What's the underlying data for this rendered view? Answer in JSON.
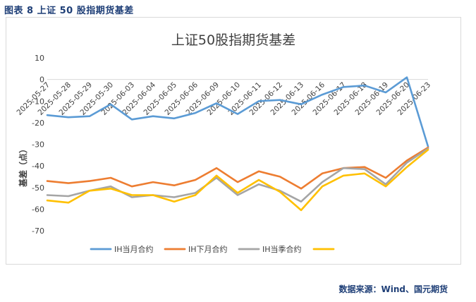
{
  "caption": "图表 8  上证 50 股指期货基差",
  "source": "数据来源：Wind、国元期货",
  "chart_data": {
    "type": "line",
    "title": "上证50股指期货基差",
    "ylabel": "基差（点）",
    "xlabel": "",
    "ylim": [
      -70,
      10
    ],
    "yticks": [
      10,
      0,
      -10,
      -20,
      -30,
      -40,
      -50,
      -60,
      -70
    ],
    "grid": false,
    "legend_position": "bottom",
    "categories": [
      "2025-05-27",
      "2025-05-28",
      "2025-05-29",
      "2025-05-30",
      "2025-06-03",
      "2025-06-04",
      "2025-06-05",
      "2025-06-06",
      "2025-06-09",
      "2025-06-10",
      "2025-06-11",
      "2025-06-12",
      "2025-06-13",
      "2025-06-16",
      "2025-06-17",
      "2025-06-18",
      "2025-06-19",
      "2025-06-20",
      "2025-06-23"
    ],
    "series": [
      {
        "name": "IH当月合约",
        "color": "#5b9bd5",
        "values": [
          -16.5,
          -17.5,
          -17,
          -11.5,
          -18.5,
          -17,
          -18,
          -15.5,
          -11,
          -16,
          -10,
          -9.5,
          -11.5,
          -7,
          -3.5,
          -2.8,
          -6,
          1,
          -31
        ]
      },
      {
        "name": "IH下月合约",
        "color": "#ed7d31",
        "values": [
          -47,
          -48,
          -47,
          -45.5,
          -49.5,
          -47.5,
          -49,
          -46.5,
          -41,
          -47.5,
          -42.5,
          -45,
          -50.5,
          -43.5,
          -41,
          -40.5,
          -45.5,
          -37.5,
          -31.5
        ]
      },
      {
        "name": "IH当季合约",
        "color": "#a5a5a5",
        "values": [
          -53.5,
          -54,
          -51.5,
          -49.5,
          -54.5,
          -53.5,
          -54.5,
          -52.5,
          -45.5,
          -53.5,
          -48.5,
          -51.5,
          -56.5,
          -47.5,
          -41,
          -41.5,
          -48.5,
          -38.5,
          -32
        ]
      },
      {
        "name": "",
        "color": "#ffc000",
        "values": [
          -56,
          -57,
          -51.5,
          -50.5,
          -53.5,
          -53.5,
          -56.5,
          -53.5,
          -44.5,
          -52.5,
          -46.5,
          -52,
          -60.5,
          -49.5,
          -44.5,
          -43.5,
          -49.5,
          -40.5,
          -32.5
        ]
      }
    ]
  }
}
